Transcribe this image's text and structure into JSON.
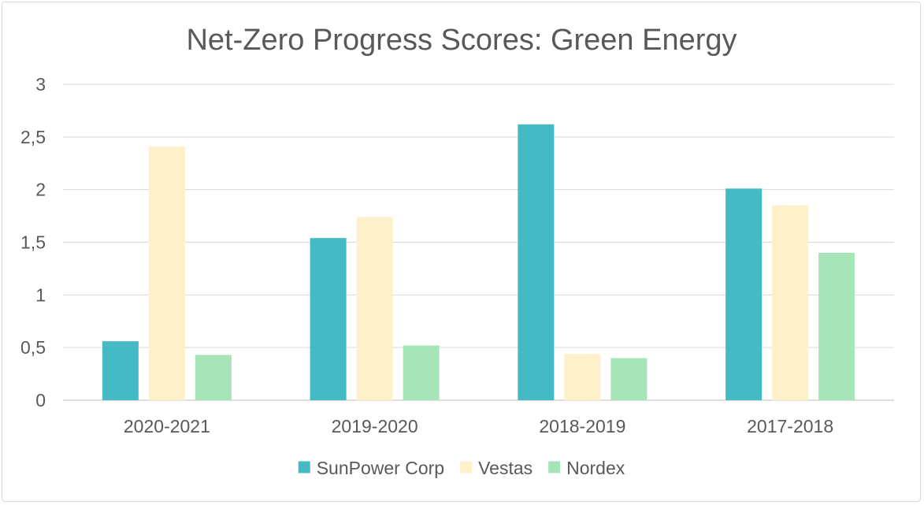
{
  "chart_data": {
    "type": "bar",
    "title": "Net-Zero Progress Scores: Green Energy",
    "xlabel": "",
    "ylabel": "",
    "categories": [
      "2020-2021",
      "2019-2020",
      "2018-2019",
      "2017-2018"
    ],
    "series": [
      {
        "name": "SunPower Corp",
        "color": "#45bac4",
        "values": [
          0.56,
          1.54,
          2.62,
          2.01
        ]
      },
      {
        "name": "Vestas",
        "color": "#fef0c8",
        "values": [
          2.41,
          1.74,
          0.44,
          1.85
        ]
      },
      {
        "name": "Nordex",
        "color": "#a7e4b8",
        "values": [
          0.43,
          0.52,
          0.4,
          1.4
        ]
      }
    ],
    "ylim": [
      0,
      3
    ],
    "yticks": [
      0,
      0.5,
      1,
      1.5,
      2,
      2.5,
      3
    ],
    "ytick_labels": [
      "0",
      "0,5",
      "1",
      "1,5",
      "2",
      "2,5",
      "3"
    ],
    "grid": true,
    "legend_position": "bottom"
  }
}
